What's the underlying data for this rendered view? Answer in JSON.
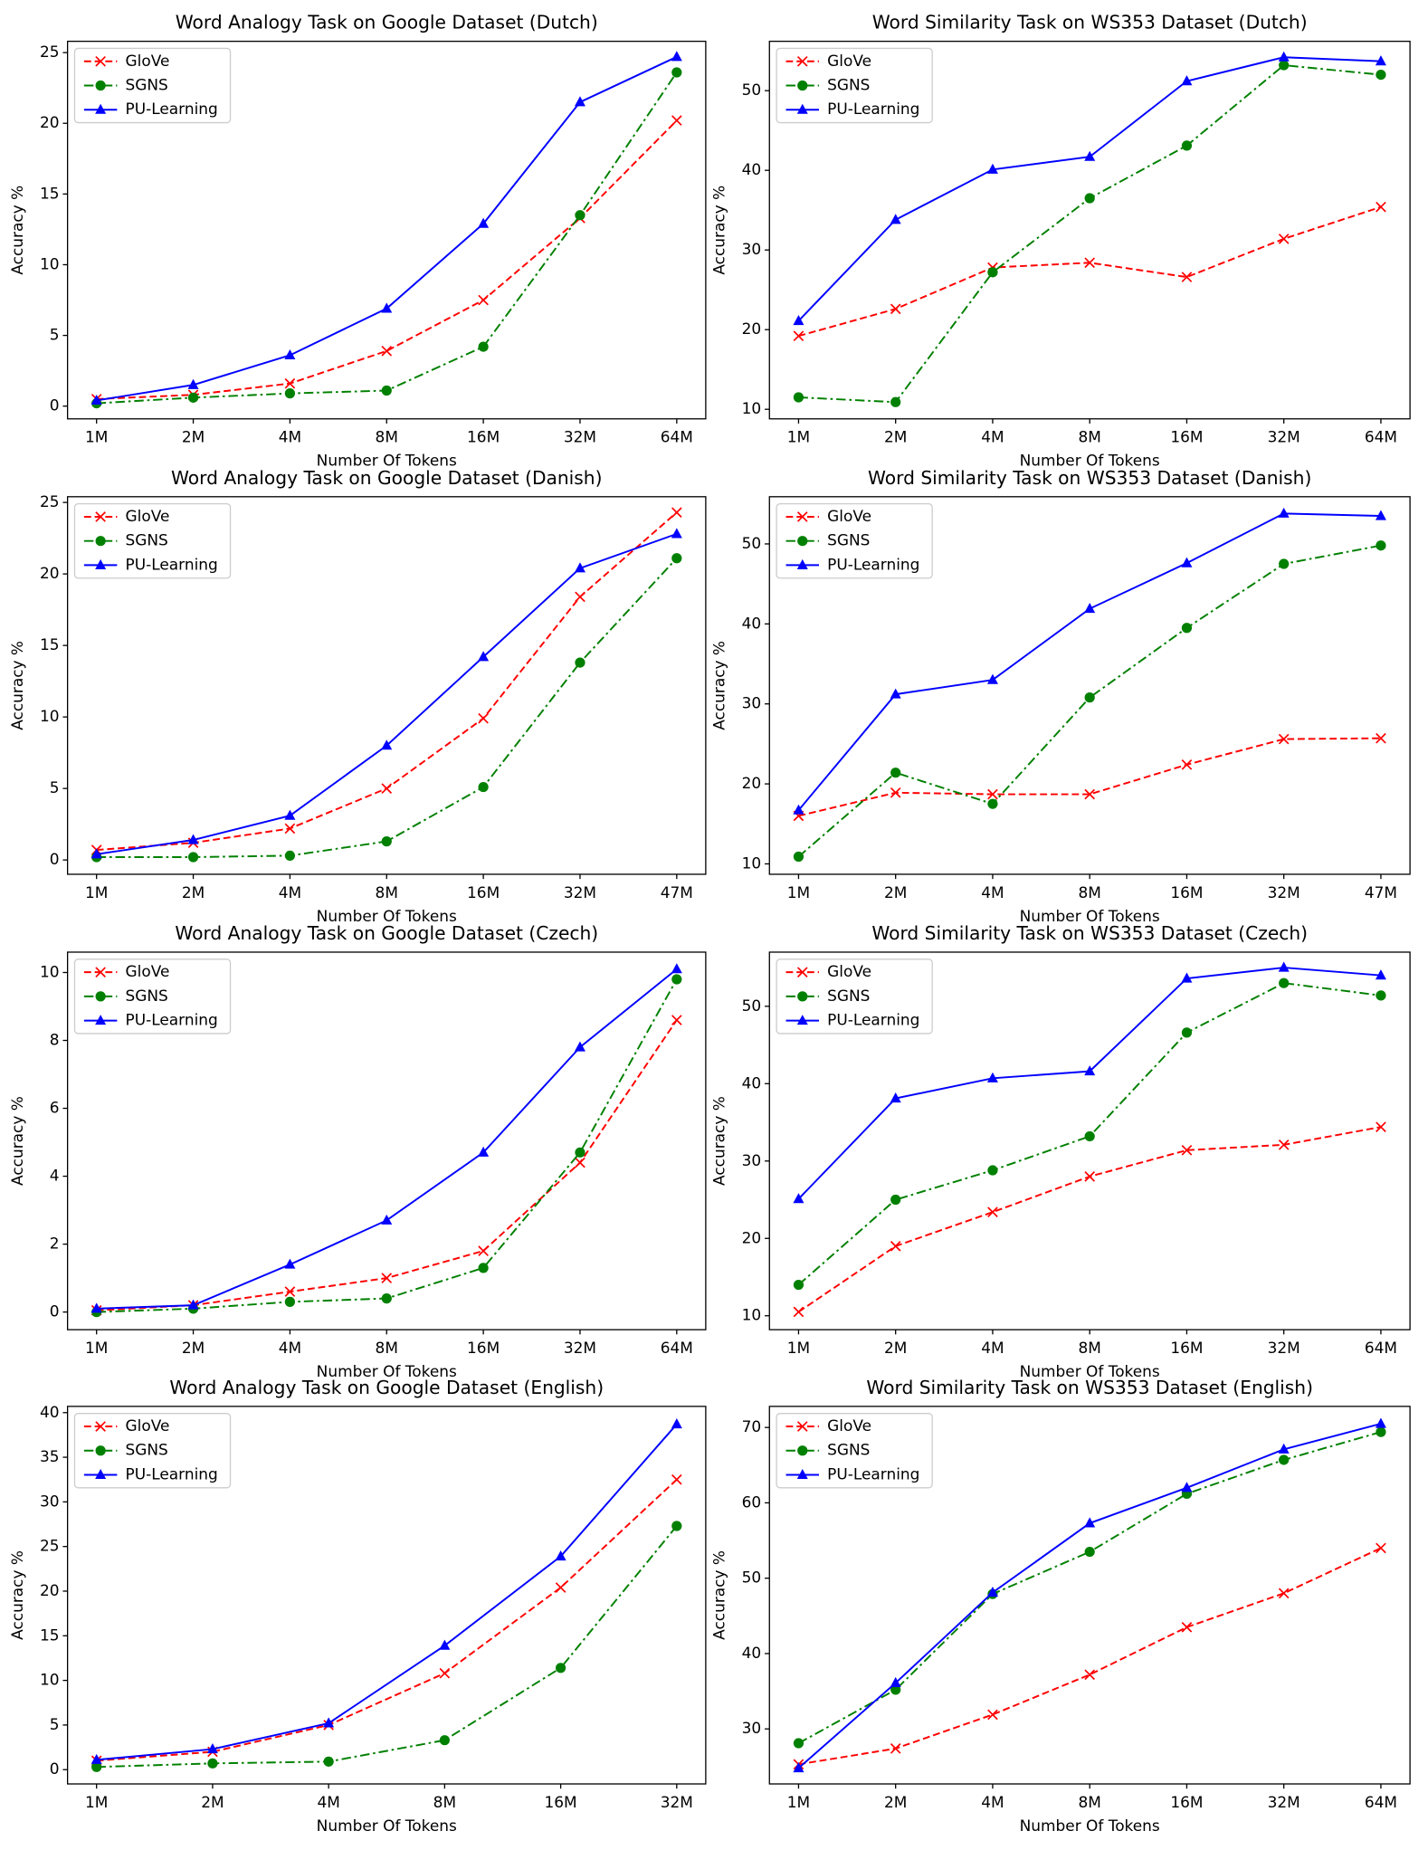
{
  "chart_data": [
    {
      "type": "line",
      "title": "Word Analogy Task on Google Dataset (Dutch)",
      "xlabel": "Number Of Tokens",
      "ylabel": "Accuracy %",
      "categories": [
        "1M",
        "2M",
        "4M",
        "8M",
        "16M",
        "32M",
        "64M"
      ],
      "ylim": [
        -0.9,
        25.8
      ],
      "yticks": [
        0,
        5,
        10,
        15,
        20,
        25
      ],
      "legend": "upper left",
      "series": [
        {
          "name": "GloVe",
          "color": "#ff0000",
          "marker": "x",
          "linestyle": "--",
          "values": [
            0.5,
            0.8,
            1.6,
            3.9,
            7.5,
            13.3,
            20.2
          ]
        },
        {
          "name": "SGNS",
          "color": "#008000",
          "marker": "o",
          "linestyle": "-.",
          "values": [
            0.2,
            0.6,
            0.9,
            1.1,
            4.2,
            13.5,
            23.6
          ]
        },
        {
          "name": "PU-Learning",
          "color": "#0000ff",
          "marker": "^",
          "linestyle": "-",
          "values": [
            0.4,
            1.5,
            3.6,
            6.9,
            12.9,
            21.5,
            24.7
          ]
        }
      ]
    },
    {
      "type": "line",
      "title": "Word Similarity Task on WS353 Dataset (Dutch)",
      "xlabel": "Number Of Tokens",
      "ylabel": "Accuracy %",
      "categories": [
        "1M",
        "2M",
        "4M",
        "8M",
        "16M",
        "32M",
        "64M"
      ],
      "ylim": [
        8.8,
        56.2
      ],
      "yticks": [
        10,
        20,
        30,
        40,
        50
      ],
      "legend": "upper left",
      "series": [
        {
          "name": "GloVe",
          "color": "#ff0000",
          "marker": "x",
          "linestyle": "--",
          "values": [
            19.2,
            22.6,
            27.8,
            28.4,
            26.6,
            31.4,
            35.4
          ]
        },
        {
          "name": "SGNS",
          "color": "#008000",
          "marker": "o",
          "linestyle": "-.",
          "values": [
            11.5,
            10.9,
            27.2,
            36.5,
            43.1,
            53.2,
            52.0
          ]
        },
        {
          "name": "PU-Learning",
          "color": "#0000ff",
          "marker": "^",
          "linestyle": "-",
          "values": [
            21.1,
            33.8,
            40.1,
            41.7,
            51.2,
            54.2,
            53.7
          ]
        }
      ]
    },
    {
      "type": "line",
      "title": "Word Analogy Task on Google Dataset (Danish)",
      "xlabel": "Number Of Tokens",
      "ylabel": "Accuracy %",
      "categories": [
        "1M",
        "2M",
        "4M",
        "8M",
        "16M",
        "32M",
        "47M"
      ],
      "ylim": [
        -1.0,
        25.4
      ],
      "yticks": [
        0,
        5,
        10,
        15,
        20,
        25
      ],
      "legend": "upper left",
      "series": [
        {
          "name": "GloVe",
          "color": "#ff0000",
          "marker": "x",
          "linestyle": "--",
          "values": [
            0.7,
            1.2,
            2.2,
            5.0,
            9.9,
            18.4,
            24.3
          ]
        },
        {
          "name": "SGNS",
          "color": "#008000",
          "marker": "o",
          "linestyle": "-.",
          "values": [
            0.2,
            0.2,
            0.3,
            1.3,
            5.1,
            13.8,
            21.1
          ]
        },
        {
          "name": "PU-Learning",
          "color": "#0000ff",
          "marker": "^",
          "linestyle": "-",
          "values": [
            0.4,
            1.4,
            3.1,
            8.0,
            14.2,
            20.4,
            22.8
          ]
        }
      ]
    },
    {
      "type": "line",
      "title": "Word Similarity Task on WS353 Dataset (Danish)",
      "xlabel": "Number Of Tokens",
      "ylabel": "Accuracy %",
      "categories": [
        "1M",
        "2M",
        "4M",
        "8M",
        "16M",
        "32M",
        "47M"
      ],
      "ylim": [
        8.7,
        55.9
      ],
      "yticks": [
        10,
        20,
        30,
        40,
        50
      ],
      "legend": "upper left",
      "series": [
        {
          "name": "GloVe",
          "color": "#ff0000",
          "marker": "x",
          "linestyle": "--",
          "values": [
            16.0,
            18.9,
            18.7,
            18.7,
            22.4,
            25.6,
            25.7
          ]
        },
        {
          "name": "SGNS",
          "color": "#008000",
          "marker": "o",
          "linestyle": "-.",
          "values": [
            10.9,
            21.4,
            17.5,
            30.8,
            39.5,
            47.5,
            49.8
          ]
        },
        {
          "name": "PU-Learning",
          "color": "#0000ff",
          "marker": "^",
          "linestyle": "-",
          "values": [
            16.7,
            31.2,
            33.0,
            41.9,
            47.6,
            53.8,
            53.5
          ]
        }
      ]
    },
    {
      "type": "line",
      "title": "Word Analogy Task on Google Dataset (Czech)",
      "xlabel": "Number Of Tokens",
      "ylabel": "Accuracy %",
      "categories": [
        "1M",
        "2M",
        "4M",
        "8M",
        "16M",
        "32M",
        "64M"
      ],
      "ylim": [
        -0.52,
        10.6
      ],
      "yticks": [
        0,
        2,
        4,
        6,
        8,
        10
      ],
      "legend": "upper left",
      "series": [
        {
          "name": "GloVe",
          "color": "#ff0000",
          "marker": "x",
          "linestyle": "--",
          "values": [
            0.05,
            0.2,
            0.6,
            1.0,
            1.8,
            4.4,
            8.6
          ]
        },
        {
          "name": "SGNS",
          "color": "#008000",
          "marker": "o",
          "linestyle": "-.",
          "values": [
            0.0,
            0.1,
            0.3,
            0.4,
            1.3,
            4.7,
            9.8
          ]
        },
        {
          "name": "PU-Learning",
          "color": "#0000ff",
          "marker": "^",
          "linestyle": "-",
          "values": [
            0.1,
            0.2,
            1.4,
            2.7,
            4.7,
            7.8,
            10.1
          ]
        }
      ]
    },
    {
      "type": "line",
      "title": "Word Similarity Task on WS353 Dataset (Czech)",
      "xlabel": "Number Of Tokens",
      "ylabel": "Accuracy %",
      "categories": [
        "1M",
        "2M",
        "4M",
        "8M",
        "16M",
        "32M",
        "64M"
      ],
      "ylim": [
        8.2,
        57.0
      ],
      "yticks": [
        10,
        20,
        30,
        40,
        50
      ],
      "legend": "upper left",
      "series": [
        {
          "name": "GloVe",
          "color": "#ff0000",
          "marker": "x",
          "linestyle": "--",
          "values": [
            10.5,
            19.0,
            23.4,
            28.0,
            31.4,
            32.1,
            34.4
          ]
        },
        {
          "name": "SGNS",
          "color": "#008000",
          "marker": "o",
          "linestyle": "-.",
          "values": [
            14.0,
            25.0,
            28.8,
            33.2,
            46.6,
            53.0,
            51.4
          ]
        },
        {
          "name": "PU-Learning",
          "color": "#0000ff",
          "marker": "^",
          "linestyle": "-",
          "values": [
            25.1,
            38.1,
            40.7,
            41.6,
            53.6,
            55.0,
            54.0
          ]
        }
      ]
    },
    {
      "type": "line",
      "title": "Word Analogy Task on Google Dataset (English)",
      "xlabel": "Number Of Tokens",
      "ylabel": "Accuracy %",
      "categories": [
        "1M",
        "2M",
        "4M",
        "8M",
        "16M",
        "32M"
      ],
      "ylim": [
        -1.6,
        40.7
      ],
      "yticks": [
        0,
        5,
        10,
        15,
        20,
        25,
        30,
        35,
        40
      ],
      "legend": "upper left",
      "series": [
        {
          "name": "GloVe",
          "color": "#ff0000",
          "marker": "x",
          "linestyle": "--",
          "values": [
            1.0,
            2.0,
            5.0,
            10.8,
            20.4,
            32.5
          ]
        },
        {
          "name": "SGNS",
          "color": "#008000",
          "marker": "o",
          "linestyle": "-.",
          "values": [
            0.3,
            0.7,
            0.9,
            3.3,
            11.4,
            27.3
          ]
        },
        {
          "name": "PU-Learning",
          "color": "#0000ff",
          "marker": "^",
          "linestyle": "-",
          "values": [
            1.1,
            2.3,
            5.2,
            13.9,
            23.9,
            38.7
          ]
        }
      ]
    },
    {
      "type": "line",
      "title": "Word Similarity Task on WS353 Dataset (English)",
      "xlabel": "Number Of Tokens",
      "ylabel": "Accuracy %",
      "categories": [
        "1M",
        "2M",
        "4M",
        "8M",
        "16M",
        "32M",
        "64M"
      ],
      "ylim": [
        22.7,
        72.8
      ],
      "yticks": [
        30,
        40,
        50,
        60,
        70
      ],
      "legend": "upper left",
      "series": [
        {
          "name": "GloVe",
          "color": "#ff0000",
          "marker": "x",
          "linestyle": "--",
          "values": [
            25.3,
            27.4,
            31.9,
            37.2,
            43.5,
            48.0,
            54.0
          ]
        },
        {
          "name": "SGNS",
          "color": "#008000",
          "marker": "o",
          "linestyle": "-.",
          "values": [
            28.1,
            35.2,
            47.9,
            53.5,
            61.2,
            65.7,
            69.4
          ]
        },
        {
          "name": "PU-Learning",
          "color": "#0000ff",
          "marker": "^",
          "linestyle": "-",
          "values": [
            24.8,
            36.1,
            48.1,
            57.3,
            62.0,
            67.1,
            70.5
          ]
        }
      ]
    }
  ]
}
